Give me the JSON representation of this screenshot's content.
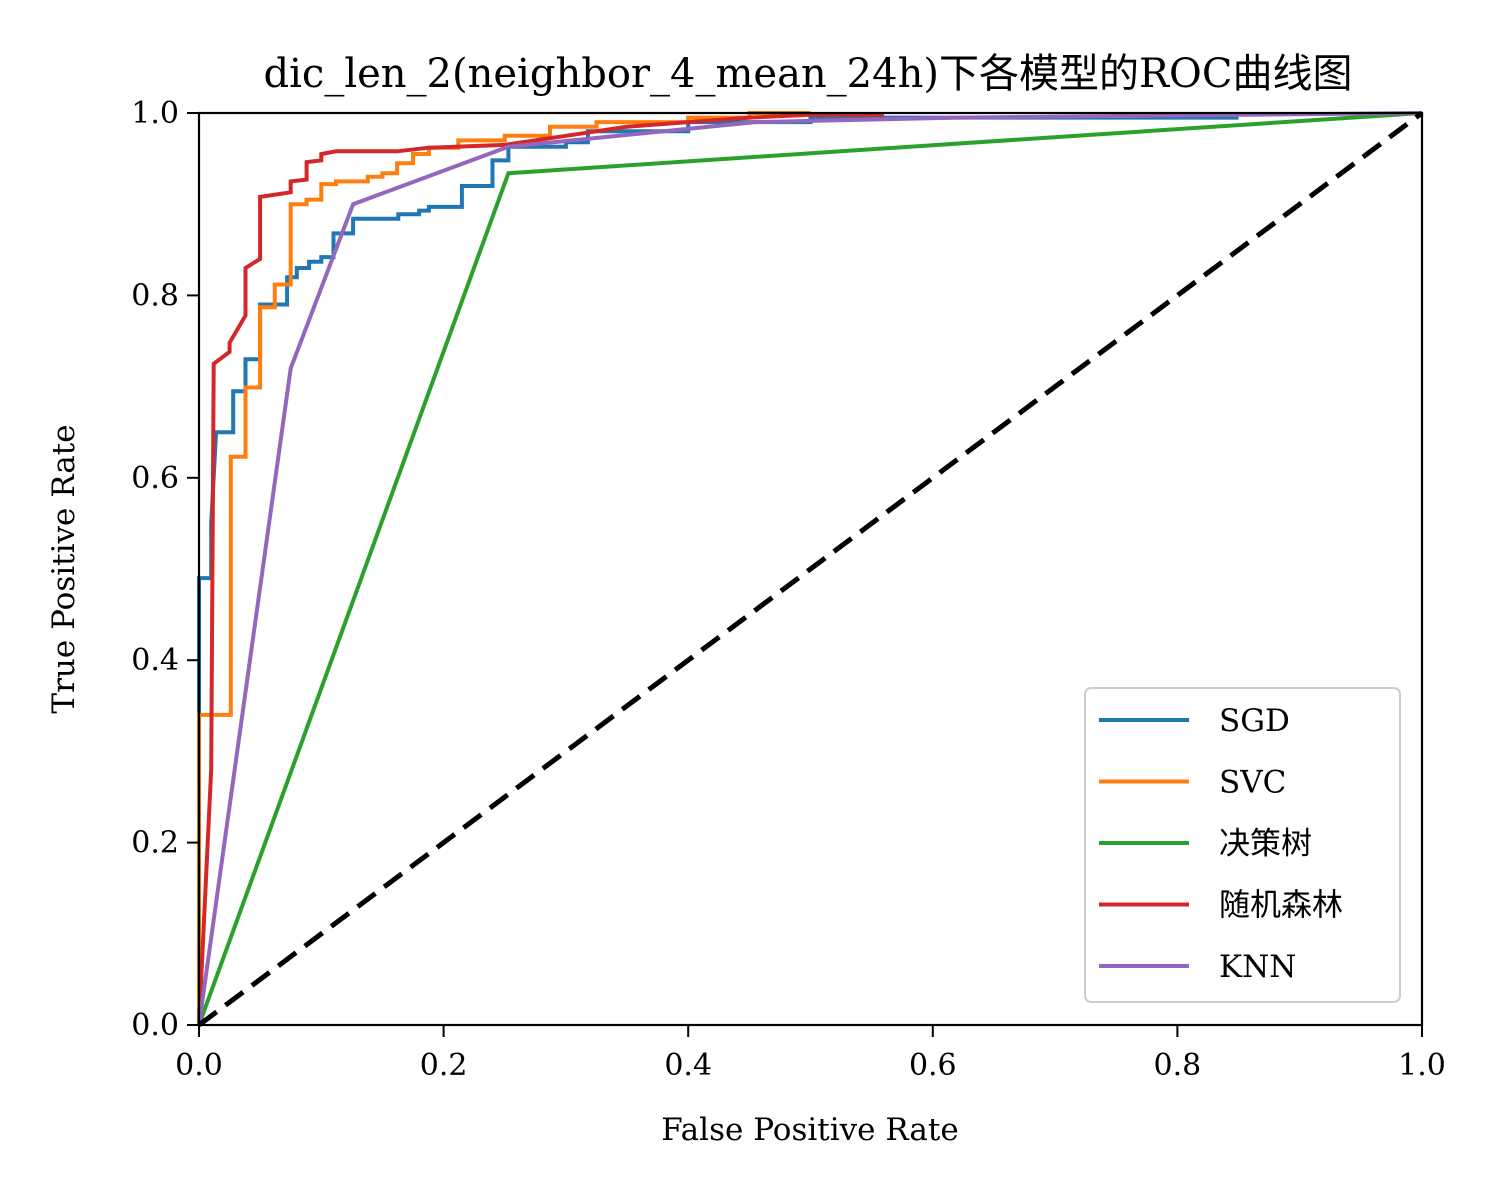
{
  "chart_data": {
    "type": "line",
    "title": "dic_len_2(neighbor_4_mean_24h)下各模型的ROC曲线图",
    "xlabel": "False Positive Rate",
    "ylabel": "True Positive Rate",
    "xlim": [
      0.0,
      1.0
    ],
    "ylim": [
      0.0,
      1.0
    ],
    "xticks": [
      "0.0",
      "0.2",
      "0.4",
      "0.6",
      "0.8",
      "1.0"
    ],
    "yticks": [
      "0.0",
      "0.2",
      "0.4",
      "0.6",
      "0.8",
      "1.0"
    ],
    "grid": false,
    "legend_position": "lower-right",
    "series": [
      {
        "name": "SGD",
        "color": "#1f77b4",
        "points": [
          [
            0,
            0
          ],
          [
            0,
            0.49
          ],
          [
            0.01,
            0.49
          ],
          [
            0.01,
            0.55
          ],
          [
            0.014,
            0.65
          ],
          [
            0.028,
            0.65
          ],
          [
            0.028,
            0.695
          ],
          [
            0.038,
            0.695
          ],
          [
            0.038,
            0.73
          ],
          [
            0.05,
            0.73
          ],
          [
            0.05,
            0.79
          ],
          [
            0.072,
            0.79
          ],
          [
            0.072,
            0.82
          ],
          [
            0.08,
            0.82
          ],
          [
            0.08,
            0.83
          ],
          [
            0.09,
            0.83
          ],
          [
            0.09,
            0.837
          ],
          [
            0.1,
            0.837
          ],
          [
            0.1,
            0.842
          ],
          [
            0.11,
            0.842
          ],
          [
            0.11,
            0.868
          ],
          [
            0.126,
            0.868
          ],
          [
            0.126,
            0.884
          ],
          [
            0.163,
            0.884
          ],
          [
            0.163,
            0.889
          ],
          [
            0.18,
            0.889
          ],
          [
            0.18,
            0.893
          ],
          [
            0.188,
            0.893
          ],
          [
            0.188,
            0.897
          ],
          [
            0.215,
            0.897
          ],
          [
            0.215,
            0.92
          ],
          [
            0.24,
            0.92
          ],
          [
            0.24,
            0.948
          ],
          [
            0.253,
            0.948
          ],
          [
            0.253,
            0.963
          ],
          [
            0.3,
            0.963
          ],
          [
            0.3,
            0.968
          ],
          [
            0.318,
            0.968
          ],
          [
            0.318,
            0.98
          ],
          [
            0.4,
            0.98
          ],
          [
            0.4,
            0.99
          ],
          [
            0.5,
            0.99
          ],
          [
            0.5,
            0.995
          ],
          [
            0.85,
            0.995
          ]
        ]
      },
      {
        "name": "SVC",
        "color": "#ff7f0e",
        "points": [
          [
            0,
            0
          ],
          [
            0,
            0.34
          ],
          [
            0.026,
            0.34
          ],
          [
            0.026,
            0.623
          ],
          [
            0.038,
            0.623
          ],
          [
            0.038,
            0.699
          ],
          [
            0.05,
            0.699
          ],
          [
            0.05,
            0.787
          ],
          [
            0.062,
            0.787
          ],
          [
            0.062,
            0.812
          ],
          [
            0.075,
            0.812
          ],
          [
            0.075,
            0.9
          ],
          [
            0.088,
            0.9
          ],
          [
            0.088,
            0.905
          ],
          [
            0.1,
            0.905
          ],
          [
            0.1,
            0.922
          ],
          [
            0.112,
            0.922
          ],
          [
            0.112,
            0.925
          ],
          [
            0.138,
            0.925
          ],
          [
            0.138,
            0.93
          ],
          [
            0.15,
            0.93
          ],
          [
            0.15,
            0.934
          ],
          [
            0.162,
            0.934
          ],
          [
            0.162,
            0.945
          ],
          [
            0.175,
            0.945
          ],
          [
            0.175,
            0.955
          ],
          [
            0.188,
            0.955
          ],
          [
            0.188,
            0.962
          ],
          [
            0.212,
            0.962
          ],
          [
            0.212,
            0.97
          ],
          [
            0.25,
            0.97
          ],
          [
            0.25,
            0.975
          ],
          [
            0.287,
            0.975
          ],
          [
            0.287,
            0.985
          ],
          [
            0.325,
            0.985
          ],
          [
            0.325,
            0.99
          ],
          [
            0.4,
            0.99
          ],
          [
            0.4,
            0.995
          ],
          [
            0.45,
            0.995
          ],
          [
            0.45,
            1.0
          ],
          [
            0.5,
            1.0
          ]
        ]
      },
      {
        "name": "决策树",
        "color": "#2ca02c",
        "points": [
          [
            0,
            0
          ],
          [
            0.253,
            0.934
          ],
          [
            1.0,
            1.0
          ]
        ]
      },
      {
        "name": "随机森林",
        "color": "#d62728",
        "points": [
          [
            0,
            0
          ],
          [
            0.01,
            0.28
          ],
          [
            0.012,
            0.725
          ],
          [
            0.025,
            0.738
          ],
          [
            0.025,
            0.748
          ],
          [
            0.038,
            0.778
          ],
          [
            0.038,
            0.83
          ],
          [
            0.05,
            0.84
          ],
          [
            0.05,
            0.908
          ],
          [
            0.075,
            0.913
          ],
          [
            0.075,
            0.925
          ],
          [
            0.088,
            0.927
          ],
          [
            0.088,
            0.946
          ],
          [
            0.1,
            0.948
          ],
          [
            0.1,
            0.955
          ],
          [
            0.112,
            0.958
          ],
          [
            0.162,
            0.958
          ],
          [
            0.188,
            0.962
          ],
          [
            0.25,
            0.965
          ],
          [
            0.3,
            0.975
          ],
          [
            0.35,
            0.985
          ],
          [
            0.4,
            0.99
          ],
          [
            0.45,
            0.995
          ],
          [
            0.5,
            0.998
          ],
          [
            0.56,
            0.998
          ]
        ]
      },
      {
        "name": "KNN",
        "color": "#9467bd",
        "points": [
          [
            0,
            0
          ],
          [
            0.075,
            0.72
          ],
          [
            0.126,
            0.9
          ],
          [
            0.253,
            0.963
          ],
          [
            0.455,
            0.99
          ],
          [
            0.62,
            0.995
          ],
          [
            1.0,
            1.0
          ]
        ]
      }
    ],
    "reference_line": {
      "points": [
        [
          0,
          0
        ],
        [
          1,
          1
        ]
      ],
      "color": "#000000",
      "style": "dashed"
    }
  }
}
